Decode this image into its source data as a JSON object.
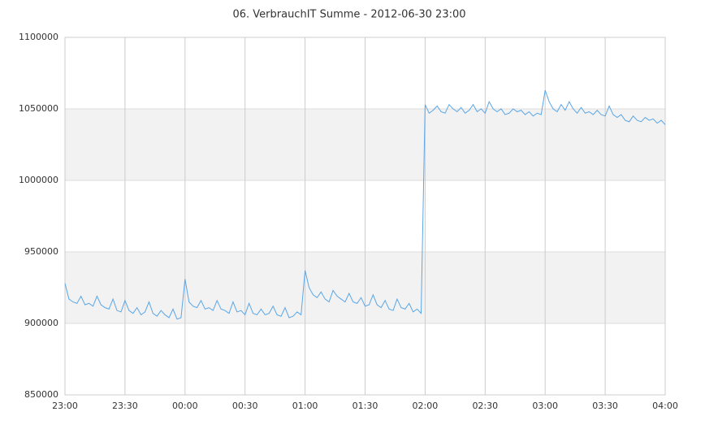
{
  "chart_data": {
    "type": "line",
    "title": "06. VerbrauchIT Summe - 2012-06-30 23:00",
    "categories": [
      "23:00",
      null,
      null,
      null,
      null,
      null,
      null,
      null,
      null,
      null,
      null,
      null,
      null,
      null,
      null,
      "23:30",
      null,
      null,
      null,
      null,
      null,
      null,
      null,
      null,
      null,
      null,
      null,
      null,
      null,
      null,
      "00:00",
      null,
      null,
      null,
      null,
      null,
      null,
      null,
      null,
      null,
      null,
      null,
      null,
      null,
      null,
      "00:30",
      null,
      null,
      null,
      null,
      null,
      null,
      null,
      null,
      null,
      null,
      null,
      null,
      null,
      null,
      "01:00",
      null,
      null,
      null,
      null,
      null,
      null,
      null,
      null,
      null,
      null,
      null,
      null,
      null,
      null,
      "01:30",
      null,
      null,
      null,
      null,
      null,
      null,
      null,
      null,
      null,
      null,
      null,
      null,
      null,
      null,
      "02:00",
      null,
      null,
      null,
      null,
      null,
      null,
      null,
      null,
      null,
      null,
      null,
      null,
      null,
      null,
      "02:30",
      null,
      null,
      null,
      null,
      null,
      null,
      null,
      null,
      null,
      null,
      null,
      null,
      null,
      null,
      "03:00",
      null,
      null,
      null,
      null,
      null,
      null,
      null,
      null,
      null,
      null,
      null,
      null,
      null,
      null,
      "03:30",
      null,
      null,
      null,
      null,
      null,
      null,
      null,
      null,
      null,
      null,
      null,
      null,
      null,
      null,
      "04:00"
    ],
    "series": [
      {
        "name": "VerbrauchIT Summe",
        "color": "#5aa6e6",
        "values": [
          928000,
          917000,
          915000,
          914000,
          919000,
          913000,
          914000,
          912000,
          919000,
          913000,
          911000,
          910000,
          917000,
          909000,
          908000,
          916000,
          909000,
          907000,
          911000,
          906000,
          908000,
          915000,
          907000,
          905000,
          909000,
          906000,
          904000,
          910000,
          903000,
          904000,
          931000,
          915000,
          912000,
          911000,
          916000,
          910000,
          911000,
          909000,
          916000,
          910000,
          909000,
          907000,
          915000,
          908000,
          909000,
          906000,
          914000,
          907000,
          906000,
          910000,
          906000,
          907000,
          912000,
          906000,
          905000,
          911000,
          904000,
          905000,
          908000,
          906000,
          937000,
          925000,
          920000,
          918000,
          922000,
          917000,
          915000,
          923000,
          919000,
          917000,
          915000,
          921000,
          915000,
          914000,
          918000,
          912000,
          913000,
          920000,
          913000,
          911000,
          916000,
          910000,
          909000,
          917000,
          911000,
          910000,
          914000,
          908000,
          910000,
          907000,
          1053000,
          1047000,
          1049000,
          1052000,
          1048000,
          1047000,
          1053000,
          1050000,
          1048000,
          1051000,
          1047000,
          1049000,
          1053000,
          1048000,
          1050000,
          1047000,
          1055000,
          1050000,
          1048000,
          1050000,
          1046000,
          1047000,
          1050000,
          1048000,
          1049000,
          1046000,
          1048000,
          1045000,
          1047000,
          1046000,
          1063000,
          1055000,
          1050000,
          1048000,
          1053000,
          1049000,
          1055000,
          1050000,
          1047000,
          1051000,
          1047000,
          1048000,
          1046000,
          1049000,
          1046000,
          1045000,
          1052000,
          1046000,
          1044000,
          1046000,
          1042000,
          1041000,
          1045000,
          1042000,
          1041000,
          1044000,
          1042000,
          1043000,
          1040000,
          1042000,
          1039000
        ]
      }
    ],
    "ylim": [
      850000,
      1100000
    ],
    "yticks": [
      850000,
      900000,
      950000,
      1000000,
      1050000,
      1100000
    ],
    "grid": true,
    "band_color": "#f2f2f2"
  }
}
